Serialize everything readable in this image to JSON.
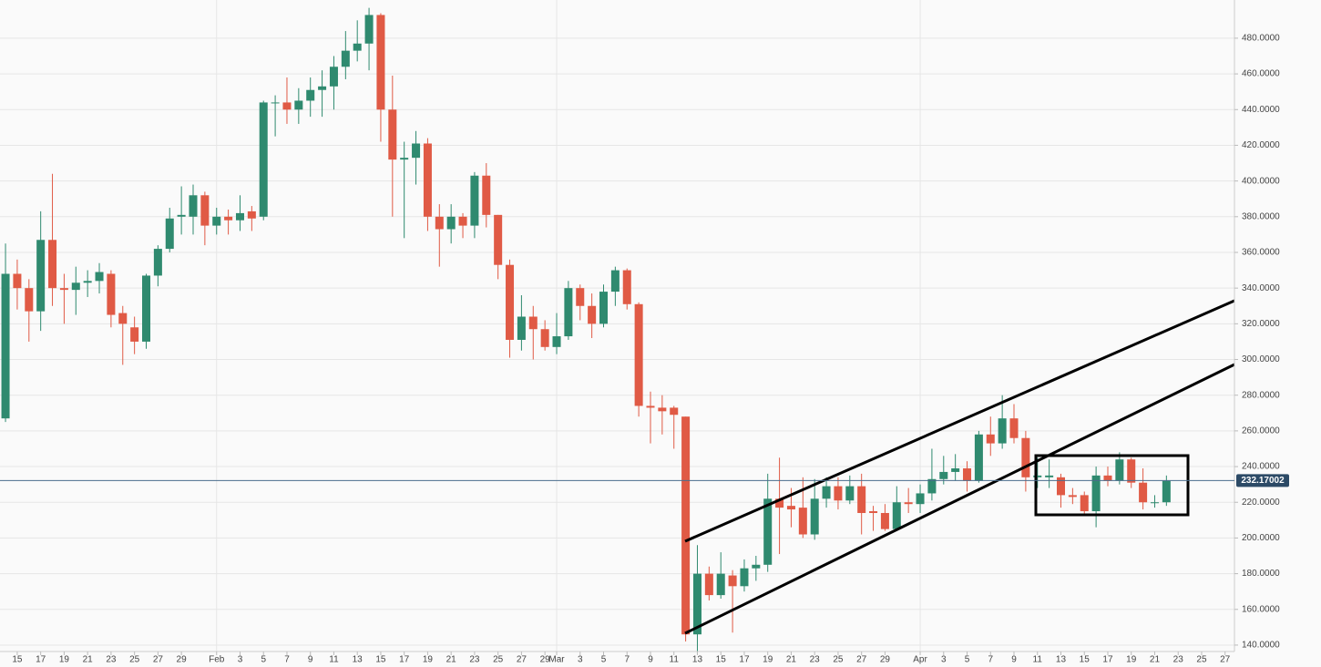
{
  "chart_data": {
    "type": "candlestick",
    "x": [
      0,
      1,
      2,
      3,
      4,
      5,
      6,
      7,
      8,
      9,
      10,
      11,
      12,
      13,
      14,
      15,
      16,
      17,
      18,
      19,
      20,
      21,
      22,
      23,
      24,
      25,
      26,
      27,
      28,
      29,
      30,
      31,
      32,
      33,
      34,
      35,
      36,
      37,
      38,
      39,
      40,
      41,
      42,
      43,
      44,
      45,
      46,
      47,
      48,
      49,
      50,
      51,
      52,
      53,
      54,
      55,
      56,
      57,
      58,
      59,
      60,
      61,
      62,
      63,
      64,
      65,
      66,
      67,
      68,
      69,
      70,
      71,
      72,
      73,
      74,
      75,
      76,
      77,
      78,
      79,
      80,
      81,
      82,
      83,
      84,
      85,
      86,
      87,
      88,
      89,
      90,
      91,
      92,
      93,
      94,
      95,
      96,
      97,
      98,
      99
    ],
    "open": [
      267,
      348,
      340,
      327,
      367,
      340,
      339,
      343,
      344,
      348,
      326,
      318,
      310,
      347,
      362,
      380,
      380,
      392,
      375,
      380,
      378,
      383,
      380,
      444,
      444,
      440,
      445,
      451,
      453,
      464,
      473,
      477,
      493,
      440,
      412,
      413,
      421,
      380,
      373,
      380,
      375,
      403,
      381,
      353,
      311,
      324,
      317,
      307,
      313,
      340,
      330,
      320,
      338,
      350,
      331,
      274,
      273,
      273,
      268,
      146,
      180,
      168,
      179,
      173,
      183,
      185,
      222,
      218,
      217,
      202,
      222,
      229,
      221,
      229,
      215,
      214,
      205,
      220,
      219,
      225,
      233,
      237,
      239,
      232,
      258,
      253,
      267,
      256,
      234,
      234,
      234,
      224,
      224,
      215,
      235,
      232,
      244,
      231,
      220,
      220
    ],
    "high": [
      365,
      356,
      345,
      383,
      404,
      348,
      352,
      350,
      354,
      350,
      330,
      324,
      348,
      364,
      385,
      397,
      398,
      394,
      385,
      384,
      392,
      386,
      445,
      448,
      458,
      452,
      458,
      462,
      470,
      484,
      490,
      497,
      494,
      459,
      422,
      428,
      424,
      387,
      387,
      382,
      405,
      410,
      381,
      356,
      336,
      330,
      322,
      326,
      344,
      342,
      337,
      342,
      352,
      351,
      332,
      282,
      280,
      274,
      268,
      196,
      184,
      192,
      182,
      188,
      190,
      236,
      245,
      228,
      234,
      233,
      234,
      234,
      235,
      236,
      218,
      219,
      229,
      228,
      230,
      250,
      246,
      247,
      243,
      260,
      268,
      280,
      275,
      260,
      245,
      244,
      236,
      228,
      226,
      240,
      240,
      248,
      245,
      239,
      224,
      235
    ],
    "low": [
      265,
      328,
      310,
      316,
      330,
      320,
      325,
      335,
      337,
      318,
      297,
      303,
      306,
      341,
      360,
      370,
      370,
      364,
      370,
      370,
      372,
      372,
      378,
      425,
      432,
      432,
      436,
      436,
      440,
      457,
      467,
      462,
      422,
      380,
      368,
      398,
      372,
      352,
      365,
      368,
      368,
      374,
      345,
      301,
      305,
      300,
      305,
      303,
      311,
      322,
      312,
      318,
      330,
      328,
      268,
      253,
      258,
      250,
      142,
      135,
      165,
      166,
      147,
      170,
      176,
      181,
      191,
      206,
      200,
      199,
      217,
      216,
      219,
      202,
      204,
      204,
      204,
      214,
      214,
      221,
      230,
      232,
      226,
      231,
      246,
      250,
      253,
      226,
      228,
      228,
      217,
      219,
      213,
      206,
      229,
      230,
      228,
      216,
      217,
      218
    ],
    "close": [
      348,
      340,
      327,
      367,
      340,
      339,
      343,
      344,
      349,
      325,
      320,
      310,
      347,
      362,
      379,
      381,
      392,
      375,
      380,
      378,
      382,
      379,
      444,
      444,
      440,
      445,
      451,
      453,
      464,
      473,
      477,
      493,
      440,
      412,
      413,
      421,
      380,
      373,
      380,
      375,
      403,
      381,
      353,
      311,
      324,
      317,
      307,
      313,
      340,
      330,
      320,
      338,
      350,
      331,
      274,
      273,
      271,
      269,
      146,
      180,
      168,
      180,
      173,
      183,
      185,
      222,
      217,
      216,
      202,
      222,
      229,
      221,
      229,
      214,
      214,
      205,
      220,
      219,
      225,
      233,
      237,
      239,
      232,
      258,
      253,
      267,
      256,
      234,
      235,
      235,
      224,
      223,
      215,
      235,
      232,
      244,
      231,
      220,
      220,
      232
    ],
    "up_color": "#2f8a6f",
    "down_color": "#e05a45",
    "last_price": 232.17002,
    "xlim": [
      -0.47,
      104.8
    ],
    "ylim": [
      136.4,
      501.4
    ],
    "xticks": [
      {
        "value": 1,
        "label": "15"
      },
      {
        "value": 3,
        "label": "17"
      },
      {
        "value": 5,
        "label": "19"
      },
      {
        "value": 7,
        "label": "21"
      },
      {
        "value": 9,
        "label": "23"
      },
      {
        "value": 11,
        "label": "25"
      },
      {
        "value": 13,
        "label": "27"
      },
      {
        "value": 15,
        "label": "29"
      },
      {
        "value": 18,
        "label": "Feb"
      },
      {
        "value": 20,
        "label": "3"
      },
      {
        "value": 22,
        "label": "5"
      },
      {
        "value": 24,
        "label": "7"
      },
      {
        "value": 26,
        "label": "9"
      },
      {
        "value": 28,
        "label": "11"
      },
      {
        "value": 30,
        "label": "13"
      },
      {
        "value": 32,
        "label": "15"
      },
      {
        "value": 34,
        "label": "17"
      },
      {
        "value": 36,
        "label": "19"
      },
      {
        "value": 38,
        "label": "21"
      },
      {
        "value": 40,
        "label": "23"
      },
      {
        "value": 42,
        "label": "25"
      },
      {
        "value": 44,
        "label": "27"
      },
      {
        "value": 46,
        "label": "29"
      },
      {
        "value": 47,
        "label": "Mar"
      },
      {
        "value": 49,
        "label": "3"
      },
      {
        "value": 51,
        "label": "5"
      },
      {
        "value": 53,
        "label": "7"
      },
      {
        "value": 55,
        "label": "9"
      },
      {
        "value": 57,
        "label": "11"
      },
      {
        "value": 59,
        "label": "13"
      },
      {
        "value": 61,
        "label": "15"
      },
      {
        "value": 63,
        "label": "17"
      },
      {
        "value": 65,
        "label": "19"
      },
      {
        "value": 67,
        "label": "21"
      },
      {
        "value": 69,
        "label": "23"
      },
      {
        "value": 71,
        "label": "25"
      },
      {
        "value": 73,
        "label": "27"
      },
      {
        "value": 75,
        "label": "29"
      },
      {
        "value": 78,
        "label": "Apr"
      },
      {
        "value": 80,
        "label": "3"
      },
      {
        "value": 82,
        "label": "5"
      },
      {
        "value": 84,
        "label": "7"
      },
      {
        "value": 86,
        "label": "9"
      },
      {
        "value": 88,
        "label": "11"
      },
      {
        "value": 90,
        "label": "13"
      },
      {
        "value": 92,
        "label": "15"
      },
      {
        "value": 94,
        "label": "17"
      },
      {
        "value": 96,
        "label": "19"
      },
      {
        "value": 98,
        "label": "21"
      },
      {
        "value": 100,
        "label": "23"
      },
      {
        "value": 102,
        "label": "25"
      },
      {
        "value": 104,
        "label": "27"
      }
    ],
    "yticks": [
      {
        "value": 140,
        "label": "140.0000"
      },
      {
        "value": 160,
        "label": "160.0000"
      },
      {
        "value": 180,
        "label": "180.0000"
      },
      {
        "value": 200,
        "label": "200.0000"
      },
      {
        "value": 220,
        "label": "220.0000"
      },
      {
        "value": 240,
        "label": "240.0000"
      },
      {
        "value": 260,
        "label": "260.0000"
      },
      {
        "value": 280,
        "label": "280.0000"
      },
      {
        "value": 300,
        "label": "300.0000"
      },
      {
        "value": 320,
        "label": "320.0000"
      },
      {
        "value": 340,
        "label": "340.0000"
      },
      {
        "value": 360,
        "label": "360.0000"
      },
      {
        "value": 380,
        "label": "380.0000"
      },
      {
        "value": 400,
        "label": "400.0000"
      },
      {
        "value": 420,
        "label": "420.0000"
      },
      {
        "value": 440,
        "label": "440.0000"
      },
      {
        "value": 460,
        "label": "460.0000"
      },
      {
        "value": 480,
        "label": "480.0000"
      }
    ],
    "grid": true
  }
}
